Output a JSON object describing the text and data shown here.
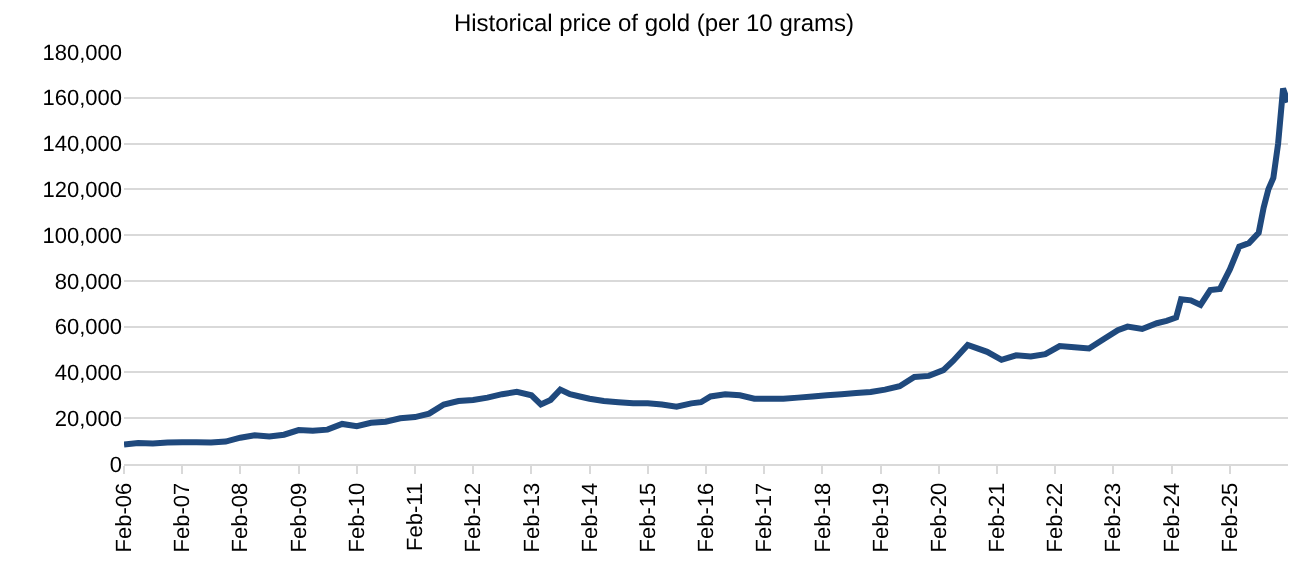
{
  "chart_data": {
    "type": "line",
    "title": "Historical price of gold (per 10 grams)",
    "x": [
      "2006-02",
      "2006-05",
      "2006-08",
      "2006-11",
      "2007-02",
      "2007-05",
      "2007-08",
      "2007-11",
      "2008-02",
      "2008-05",
      "2008-08",
      "2008-11",
      "2009-02",
      "2009-05",
      "2009-08",
      "2009-11",
      "2010-02",
      "2010-05",
      "2010-08",
      "2010-11",
      "2011-02",
      "2011-05",
      "2011-08",
      "2011-11",
      "2012-02",
      "2012-05",
      "2012-08",
      "2012-11",
      "2013-02",
      "2013-04",
      "2013-06",
      "2013-08",
      "2013-10",
      "2013-12",
      "2014-02",
      "2014-05",
      "2014-08",
      "2014-11",
      "2015-02",
      "2015-05",
      "2015-08",
      "2015-11",
      "2016-01",
      "2016-03",
      "2016-06",
      "2016-09",
      "2016-12",
      "2017-03",
      "2017-06",
      "2017-09",
      "2017-12",
      "2018-03",
      "2018-06",
      "2018-09",
      "2018-12",
      "2019-03",
      "2019-06",
      "2019-09",
      "2019-12",
      "2020-03",
      "2020-05",
      "2020-08",
      "2020-10",
      "2020-12",
      "2021-03",
      "2021-06",
      "2021-09",
      "2021-12",
      "2022-03",
      "2022-06",
      "2022-09",
      "2022-12",
      "2023-03",
      "2023-05",
      "2023-08",
      "2023-11",
      "2024-01",
      "2024-03",
      "2024-04",
      "2024-06",
      "2024-08",
      "2024-10",
      "2024-12",
      "2025-02",
      "2025-04",
      "2025-06",
      "2025-08",
      "2025-09",
      "2025-10",
      "2025-11",
      "2025-12",
      "2026-01",
      "2026-02"
    ],
    "series": [
      {
        "color": "#1f497d",
        "values": [
          8500,
          9200,
          9000,
          9400,
          9500,
          9500,
          9400,
          9800,
          11500,
          12500,
          12000,
          12800,
          14800,
          14500,
          15000,
          17500,
          16500,
          18000,
          18500,
          20000,
          20500,
          22000,
          26000,
          27500,
          28000,
          29000,
          30500,
          31500,
          30000,
          26000,
          28000,
          32500,
          30500,
          29500,
          28500,
          27500,
          27000,
          26500,
          26500,
          26000,
          25000,
          26500,
          27000,
          29500,
          30500,
          30000,
          28500,
          28500,
          28500,
          29000,
          29500,
          30000,
          30500,
          31000,
          31500,
          32500,
          34000,
          38000,
          38500,
          41000,
          45000,
          52000,
          50500,
          49000,
          45500,
          47500,
          47000,
          48000,
          51500,
          51000,
          50500,
          54500,
          58500,
          60000,
          59000,
          61500,
          62500,
          64000,
          72000,
          71500,
          69500,
          76000,
          76500,
          85000,
          95000,
          96500,
          101000,
          112000,
          120000,
          125000,
          140000,
          164000,
          158000
        ]
      }
    ],
    "xlim": [
      "2006-02",
      "2026-02"
    ],
    "xticks": [
      {
        "value": "2006-02",
        "label": "Feb-06"
      },
      {
        "value": "2007-02",
        "label": "Feb-07"
      },
      {
        "value": "2008-02",
        "label": "Feb-08"
      },
      {
        "value": "2009-02",
        "label": "Feb-09"
      },
      {
        "value": "2010-02",
        "label": "Feb-10"
      },
      {
        "value": "2011-02",
        "label": "Feb-11"
      },
      {
        "value": "2012-02",
        "label": "Feb-12"
      },
      {
        "value": "2013-02",
        "label": "Feb-13"
      },
      {
        "value": "2014-02",
        "label": "Feb-14"
      },
      {
        "value": "2015-02",
        "label": "Feb-15"
      },
      {
        "value": "2016-02",
        "label": "Feb-16"
      },
      {
        "value": "2017-02",
        "label": "Feb-17"
      },
      {
        "value": "2018-02",
        "label": "Feb-18"
      },
      {
        "value": "2019-02",
        "label": "Feb-19"
      },
      {
        "value": "2020-02",
        "label": "Feb-20"
      },
      {
        "value": "2021-02",
        "label": "Feb-21"
      },
      {
        "value": "2022-02",
        "label": "Feb-22"
      },
      {
        "value": "2023-02",
        "label": "Feb-23"
      },
      {
        "value": "2024-02",
        "label": "Feb-24"
      },
      {
        "value": "2025-02",
        "label": "Feb-25"
      }
    ],
    "ylim": [
      0,
      180000
    ],
    "yticks": [
      {
        "value": 0,
        "label": "0"
      },
      {
        "value": 20000,
        "label": "20,000"
      },
      {
        "value": 40000,
        "label": "40,000"
      },
      {
        "value": 60000,
        "label": "60,000"
      },
      {
        "value": 80000,
        "label": "80,000"
      },
      {
        "value": 100000,
        "label": "100,000"
      },
      {
        "value": 120000,
        "label": "120,000"
      },
      {
        "value": 140000,
        "label": "140,000"
      },
      {
        "value": 160000,
        "label": "160,000"
      },
      {
        "value": 180000,
        "label": "180,000"
      }
    ],
    "grid": "y",
    "marker": "none",
    "line_style": "solid"
  }
}
